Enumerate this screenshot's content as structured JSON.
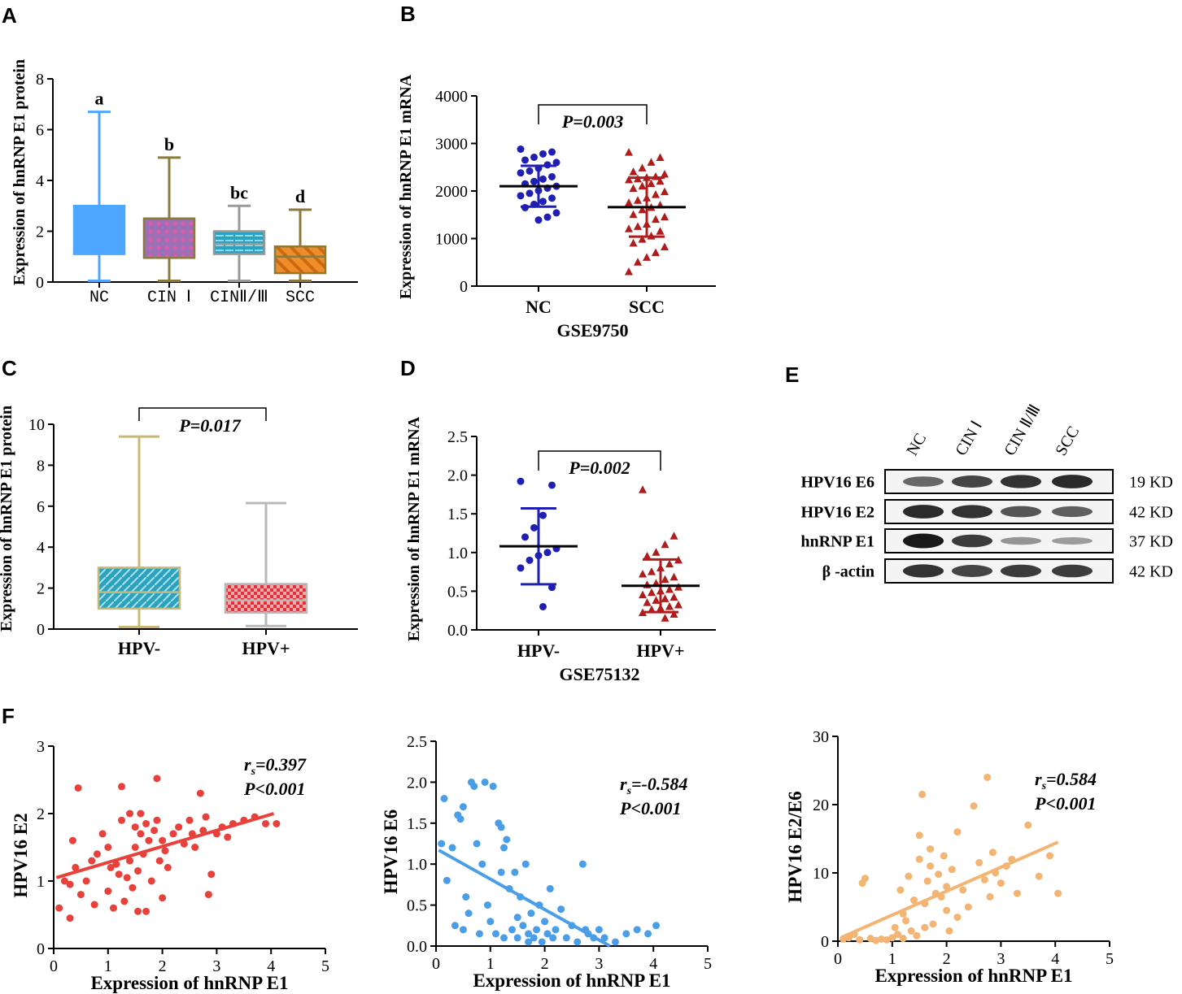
{
  "panels": {
    "A": {
      "letter": "A"
    },
    "B": {
      "letter": "B"
    },
    "C": {
      "letter": "C"
    },
    "D": {
      "letter": "D"
    },
    "E": {
      "letter": "E"
    },
    "F": {
      "letter": "F"
    }
  },
  "chart_data": [
    {
      "id": "A",
      "type": "boxplot",
      "ylabel": "Expression of hnRNP E1 protein",
      "ylim": [
        0,
        8
      ],
      "yticks": [
        "0",
        "2",
        "4",
        "6",
        "8"
      ],
      "categories": [
        "NC",
        "CIN Ⅰ",
        "CINⅡ/Ⅲ",
        "SCC"
      ],
      "boxes": [
        {
          "min": 0.05,
          "q1": 1.1,
          "median": 3.0,
          "q3": 3.0,
          "max": 6.7,
          "color": "#4da6ff",
          "letter": "a"
        },
        {
          "min": 0.05,
          "q1": 0.95,
          "median": 2.5,
          "q3": 2.5,
          "max": 4.9,
          "color": "#9d6fb5",
          "letter": "b"
        },
        {
          "min": 0.05,
          "q1": 1.1,
          "median": 1.5,
          "q3": 2.0,
          "max": 3.0,
          "color": "#2ba3be",
          "letter": "bc"
        },
        {
          "min": 0.05,
          "q1": 0.35,
          "median": 1.0,
          "q3": 1.4,
          "max": 2.85,
          "color": "#f08c2a",
          "letter": "d"
        }
      ]
    },
    {
      "id": "B",
      "type": "scatter_dot",
      "xlabel": "GSE9750",
      "ylabel": "Expression of hnRNP E1 mRNA",
      "ylim": [
        0,
        4000
      ],
      "yticks": [
        "0",
        "1000",
        "2000",
        "3000",
        "4000"
      ],
      "categories": [
        "NC",
        "SCC"
      ],
      "pvalue": "P=0.003",
      "groups": [
        {
          "name": "NC",
          "mean": 2100,
          "sd": 430,
          "color": "#1f1fb4",
          "marker": "circle",
          "values": [
            2880,
            2820,
            2780,
            2710,
            2650,
            2600,
            2550,
            2480,
            2420,
            2380,
            2300,
            2250,
            2200,
            2150,
            2100,
            2060,
            2010,
            1950,
            1900,
            1850,
            1780,
            1720,
            1650,
            1540,
            1450,
            1390
          ]
        },
        {
          "name": "SCC",
          "mean": 1660,
          "sd": 620,
          "color": "#b01c1c",
          "marker": "triangle",
          "values": [
            2810,
            2700,
            2600,
            2480,
            2400,
            2350,
            2300,
            2280,
            2250,
            2230,
            2200,
            2150,
            2100,
            2050,
            1980,
            1920,
            1850,
            1800,
            1750,
            1700,
            1650,
            1600,
            1500,
            1450,
            1400,
            1300,
            1250,
            1200,
            1150,
            1050,
            980,
            900,
            820,
            700,
            600,
            500,
            300
          ]
        }
      ]
    },
    {
      "id": "C",
      "type": "boxplot",
      "ylabel": "Expression of hnRNP E1 protein",
      "ylim": [
        0,
        10
      ],
      "yticks": [
        "0",
        "2",
        "4",
        "6",
        "8",
        "10"
      ],
      "categories": [
        "HPV-",
        "HPV+"
      ],
      "pvalue": "P=0.017",
      "boxes": [
        {
          "min": 0.1,
          "q1": 1.0,
          "median": 1.8,
          "q3": 3.0,
          "max": 9.4,
          "color": "#2ba3be"
        },
        {
          "min": 0.15,
          "q1": 0.8,
          "median": 1.4,
          "q3": 2.2,
          "max": 6.15,
          "color": "#e8484f"
        }
      ]
    },
    {
      "id": "D",
      "type": "scatter_dot",
      "xlabel": "GSE75132",
      "ylabel": "Expression of hnRNP E1 mRNA",
      "ylim": [
        0,
        2.5
      ],
      "yticks": [
        "0.0",
        "0.5",
        "1.0",
        "1.5",
        "2.0",
        "2.5"
      ],
      "categories": [
        "HPV-",
        "HPV+"
      ],
      "pvalue": "P=0.002",
      "groups": [
        {
          "name": "HPV-",
          "mean": 1.08,
          "sd": 0.49,
          "color": "#1f1fb4",
          "marker": "circle",
          "values": [
            1.92,
            1.87,
            1.48,
            1.32,
            1.2,
            1.05,
            1.0,
            0.96,
            0.9,
            0.8,
            0.55,
            0.3
          ]
        },
        {
          "name": "HPV+",
          "mean": 0.57,
          "sd": 0.34,
          "color": "#b01c1c",
          "marker": "triangle",
          "values": [
            1.81,
            1.21,
            1.1,
            1.0,
            0.95,
            0.9,
            0.85,
            0.8,
            0.75,
            0.72,
            0.68,
            0.65,
            0.6,
            0.58,
            0.55,
            0.52,
            0.5,
            0.48,
            0.45,
            0.42,
            0.4,
            0.38,
            0.35,
            0.32,
            0.3,
            0.28,
            0.26,
            0.22,
            0.2,
            0.15
          ]
        }
      ]
    },
    {
      "id": "F1",
      "type": "scatter",
      "xlabel": "Expression of hnRNP E1",
      "ylabel": "HPV16 E2",
      "xlim": [
        0,
        5
      ],
      "ylim": [
        0,
        3
      ],
      "xticks": [
        "0",
        "1",
        "2",
        "3",
        "4",
        "5"
      ],
      "yticks": [
        "0",
        "1",
        "2",
        "3"
      ],
      "color": "#e8413c",
      "rs_label": "r",
      "rs_sub": "s",
      "rs_value": "=0.397",
      "pvalue": "P<0.001",
      "fit": [
        [
          0.05,
          1.05
        ],
        [
          4.05,
          2.0
        ]
      ],
      "points": [
        [
          0.1,
          0.6
        ],
        [
          0.2,
          1.0
        ],
        [
          0.3,
          0.45
        ],
        [
          0.35,
          1.6
        ],
        [
          0.4,
          1.2
        ],
        [
          0.45,
          2.38
        ],
        [
          0.5,
          0.8
        ],
        [
          0.6,
          1.0
        ],
        [
          0.7,
          1.3
        ],
        [
          0.75,
          0.65
        ],
        [
          0.8,
          1.4
        ],
        [
          0.9,
          1.7
        ],
        [
          1.0,
          0.85
        ],
        [
          1.0,
          1.5
        ],
        [
          1.1,
          0.6
        ],
        [
          1.15,
          1.25
        ],
        [
          1.2,
          1.1
        ],
        [
          1.25,
          1.9
        ],
        [
          1.3,
          0.7
        ],
        [
          1.35,
          1.05
        ],
        [
          1.4,
          2.0
        ],
        [
          1.4,
          1.3
        ],
        [
          1.45,
          0.9
        ],
        [
          1.5,
          1.8
        ],
        [
          1.5,
          1.5
        ],
        [
          1.55,
          1.15
        ],
        [
          1.6,
          2.0
        ],
        [
          1.6,
          1.7
        ],
        [
          1.65,
          1.4
        ],
        [
          1.7,
          0.55
        ],
        [
          1.7,
          1.85
        ],
        [
          1.75,
          1.6
        ],
        [
          1.8,
          1.0
        ],
        [
          1.85,
          1.75
        ],
        [
          1.9,
          2.52
        ],
        [
          1.9,
          1.9
        ],
        [
          1.95,
          1.3
        ],
        [
          2.0,
          1.6
        ],
        [
          2.0,
          0.75
        ],
        [
          2.05,
          1.45
        ],
        [
          2.1,
          1.2
        ],
        [
          2.2,
          1.7
        ],
        [
          2.3,
          1.8
        ],
        [
          2.4,
          1.55
        ],
        [
          2.5,
          1.9
        ],
        [
          2.55,
          1.7
        ],
        [
          2.6,
          1.5
        ],
        [
          2.7,
          2.3
        ],
        [
          2.75,
          1.75
        ],
        [
          2.8,
          1.95
        ],
        [
          2.85,
          0.8
        ],
        [
          2.9,
          1.1
        ],
        [
          3.0,
          1.7
        ],
        [
          3.1,
          1.8
        ],
        [
          3.2,
          1.65
        ],
        [
          3.3,
          1.85
        ],
        [
          3.5,
          1.9
        ],
        [
          3.7,
          1.95
        ],
        [
          3.9,
          1.85
        ],
        [
          4.1,
          1.85
        ],
        [
          1.25,
          2.4
        ],
        [
          0.3,
          0.95
        ],
        [
          1.55,
          0.55
        ],
        [
          1.05,
          1.2
        ]
      ]
    },
    {
      "id": "F2",
      "type": "scatter",
      "xlabel": "Expression of hnRNP E1",
      "ylabel": "HPV16 E6",
      "xlim": [
        0,
        5
      ],
      "ylim": [
        0,
        2.5
      ],
      "xticks": [
        "0",
        "1",
        "2",
        "3",
        "4",
        "5"
      ],
      "yticks": [
        "0.0",
        "0.5",
        "1.0",
        "1.5",
        "2.0",
        "2.5"
      ],
      "color": "#4a9ee8",
      "rs_label": "r",
      "rs_sub": "s",
      "rs_value": "=-0.584",
      "pvalue": "P<0.001",
      "fit": [
        [
          0.05,
          1.17
        ],
        [
          3.2,
          0.0
        ]
      ],
      "points": [
        [
          0.1,
          1.25
        ],
        [
          0.15,
          1.8
        ],
        [
          0.2,
          0.8
        ],
        [
          0.3,
          1.2
        ],
        [
          0.35,
          0.25
        ],
        [
          0.4,
          1.6
        ],
        [
          0.45,
          1.55
        ],
        [
          0.5,
          1.7
        ],
        [
          0.5,
          0.2
        ],
        [
          0.6,
          0.4
        ],
        [
          0.65,
          2.0
        ],
        [
          0.7,
          1.95
        ],
        [
          0.75,
          1.25
        ],
        [
          0.8,
          0.15
        ],
        [
          0.85,
          1.0
        ],
        [
          0.9,
          2.0
        ],
        [
          0.95,
          0.5
        ],
        [
          1.0,
          0.3
        ],
        [
          1.05,
          1.95
        ],
        [
          1.1,
          0.15
        ],
        [
          1.15,
          1.5
        ],
        [
          1.2,
          1.45
        ],
        [
          1.25,
          0.1
        ],
        [
          1.3,
          1.3
        ],
        [
          1.35,
          0.7
        ],
        [
          1.4,
          0.2
        ],
        [
          1.45,
          0.9
        ],
        [
          1.5,
          0.1
        ],
        [
          1.55,
          0.6
        ],
        [
          1.6,
          0.25
        ],
        [
          1.65,
          1.0
        ],
        [
          1.7,
          0.15
        ],
        [
          1.75,
          0.4
        ],
        [
          1.8,
          0.1
        ],
        [
          1.85,
          0.2
        ],
        [
          1.9,
          0.5
        ],
        [
          1.95,
          0.05
        ],
        [
          2.0,
          0.3
        ],
        [
          2.05,
          0.15
        ],
        [
          2.1,
          0.7
        ],
        [
          2.15,
          0.1
        ],
        [
          2.2,
          0.2
        ],
        [
          2.3,
          0.45
        ],
        [
          2.4,
          0.1
        ],
        [
          2.5,
          0.25
        ],
        [
          2.6,
          0.05
        ],
        [
          2.7,
          1.0
        ],
        [
          2.75,
          0.2
        ],
        [
          2.8,
          0.15
        ],
        [
          2.9,
          0.1
        ],
        [
          3.0,
          0.2
        ],
        [
          3.1,
          0.1
        ],
        [
          3.3,
          0.05
        ],
        [
          3.5,
          0.15
        ],
        [
          3.7,
          0.2
        ],
        [
          3.9,
          0.15
        ],
        [
          4.05,
          0.25
        ],
        [
          1.25,
          1.2
        ],
        [
          1.5,
          0.35
        ],
        [
          1.7,
          0.05
        ],
        [
          1.2,
          0.9
        ],
        [
          0.55,
          0.6
        ]
      ]
    },
    {
      "id": "F3",
      "type": "scatter",
      "xlabel": "Expression of hnRNP E1",
      "ylabel": "HPV16 E2/E6",
      "xlim": [
        0,
        5
      ],
      "ylim": [
        0,
        30
      ],
      "xticks": [
        "0",
        "1",
        "2",
        "3",
        "4",
        "5"
      ],
      "yticks": [
        "0",
        "10",
        "20",
        "30"
      ],
      "color": "#f3b574",
      "rs_label": "r",
      "rs_sub": "s",
      "rs_value": "=0.584",
      "pvalue": "P<0.001",
      "fit": [
        [
          0.05,
          0.5
        ],
        [
          4.05,
          14.5
        ]
      ],
      "points": [
        [
          0.1,
          0.3
        ],
        [
          0.2,
          0.5
        ],
        [
          0.3,
          1.0
        ],
        [
          0.4,
          0.2
        ],
        [
          0.45,
          8.5
        ],
        [
          0.5,
          9.2
        ],
        [
          0.6,
          0.4
        ],
        [
          0.7,
          0.1
        ],
        [
          0.8,
          0.3
        ],
        [
          0.9,
          0.2
        ],
        [
          1.0,
          0.5
        ],
        [
          1.05,
          2.0
        ],
        [
          1.1,
          1.0
        ],
        [
          1.15,
          7.5
        ],
        [
          1.2,
          0.4
        ],
        [
          1.25,
          3.0
        ],
        [
          1.3,
          9.5
        ],
        [
          1.35,
          1.5
        ],
        [
          1.4,
          6.0
        ],
        [
          1.45,
          0.8
        ],
        [
          1.5,
          12.0
        ],
        [
          1.5,
          15.5
        ],
        [
          1.55,
          21.5
        ],
        [
          1.6,
          5.5
        ],
        [
          1.65,
          8.8
        ],
        [
          1.7,
          11.0
        ],
        [
          1.75,
          2.5
        ],
        [
          1.8,
          7.0
        ],
        [
          1.85,
          9.8
        ],
        [
          1.9,
          6.5
        ],
        [
          1.95,
          12.5
        ],
        [
          2.0,
          4.5
        ],
        [
          2.0,
          8.0
        ],
        [
          2.05,
          1.5
        ],
        [
          2.1,
          10.5
        ],
        [
          2.2,
          3.5
        ],
        [
          2.3,
          7.5
        ],
        [
          2.4,
          5.0
        ],
        [
          2.5,
          19.8
        ],
        [
          2.6,
          11.5
        ],
        [
          2.7,
          9.0
        ],
        [
          2.75,
          24.0
        ],
        [
          2.8,
          6.5
        ],
        [
          2.85,
          13.0
        ],
        [
          2.9,
          10.0
        ],
        [
          3.0,
          8.5
        ],
        [
          3.1,
          11.0
        ],
        [
          3.2,
          12.0
        ],
        [
          3.3,
          7.0
        ],
        [
          3.5,
          17.0
        ],
        [
          3.7,
          9.5
        ],
        [
          3.9,
          12.5
        ],
        [
          4.05,
          7.0
        ],
        [
          1.6,
          2.0
        ],
        [
          1.2,
          4.0
        ],
        [
          2.2,
          16.0
        ],
        [
          1.7,
          13.5
        ]
      ]
    }
  ],
  "blot": {
    "lanes": [
      "NC",
      "CIN Ⅰ",
      "CIN Ⅱ/Ⅲ",
      "SCC"
    ],
    "rows": [
      {
        "label": "HPV16 E6",
        "kd": "19 KD",
        "intensity": [
          0.55,
          0.75,
          0.85,
          0.9
        ]
      },
      {
        "label": "HPV16 E2",
        "kd": "42 KD",
        "intensity": [
          0.9,
          0.85,
          0.65,
          0.6
        ]
      },
      {
        "label": "hnRNP E1",
        "kd": "37 KD",
        "intensity": [
          1.0,
          0.8,
          0.3,
          0.25
        ]
      },
      {
        "label": "β -actin",
        "kd": "42 KD",
        "intensity": [
          0.85,
          0.75,
          0.8,
          0.8
        ]
      }
    ]
  }
}
